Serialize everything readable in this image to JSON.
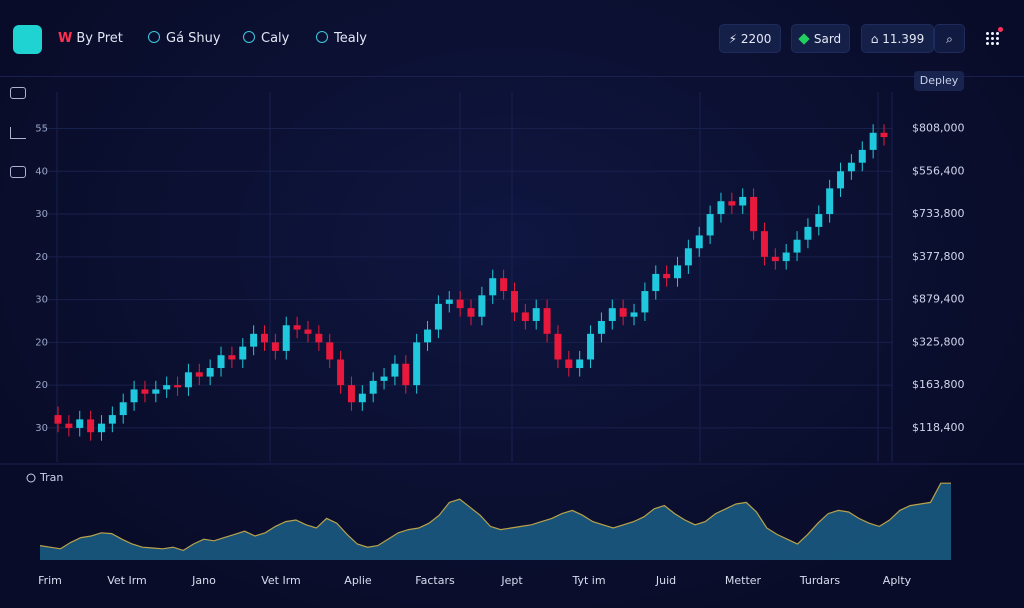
{
  "nav": {
    "brand_letter": "W",
    "tabs": [
      "By Pret",
      "Gá Shuy",
      "Caly",
      "Tealy"
    ]
  },
  "toolbar": {
    "price": "2200",
    "status": "Sard",
    "balance": "11.399"
  },
  "panel": {
    "button": "Depley",
    "volume_label": "Tran"
  },
  "chart_data": {
    "type": "candlestick",
    "left_axis_labels": [
      "55",
      "40",
      "30",
      "20",
      "30",
      "20",
      "20",
      "30"
    ],
    "right_axis_labels": [
      "$808,000",
      "$556,400",
      "$733,800",
      "$377,800",
      "$879,400",
      "$325,800",
      "$163,800",
      "$118,400"
    ],
    "x_labels": [
      "Frim",
      "Vet Irm",
      "Jano",
      "Vet Irm",
      "Aplie",
      "Factars",
      "Jept",
      "Tyt im",
      "Juid",
      "Metter",
      "Turdars",
      "Aplty"
    ],
    "ylim": [
      -0.75,
      7.9
    ],
    "yticks": [
      7,
      6,
      5,
      4,
      3,
      2,
      1,
      0
    ],
    "grid": true,
    "up_color": "#1fc8dc",
    "down_color": "#e8193c",
    "open": [
      0.3,
      0.1,
      0.0,
      0.2,
      -0.1,
      0.1,
      0.3,
      0.6,
      0.9,
      0.8,
      0.9,
      1.0,
      0.95,
      1.3,
      1.2,
      1.4,
      1.7,
      1.6,
      1.9,
      2.2,
      2.0,
      1.8,
      2.4,
      2.3,
      2.2,
      2.0,
      1.6,
      1.0,
      0.6,
      0.8,
      1.1,
      1.2,
      1.5,
      1.0,
      2.0,
      2.3,
      2.9,
      3.0,
      2.8,
      2.6,
      3.1,
      3.5,
      3.2,
      2.7,
      2.5,
      2.8,
      2.2,
      1.6,
      1.4,
      1.6,
      2.2,
      2.5,
      2.8,
      2.6,
      2.7,
      3.2,
      3.6,
      3.5,
      3.8,
      4.2,
      4.5,
      5.0,
      5.3,
      5.2,
      5.4,
      4.6,
      4.0,
      3.9,
      4.1,
      4.4,
      4.7,
      5.0,
      5.6,
      6.0,
      6.2,
      6.5,
      6.9
    ],
    "high": [
      0.5,
      0.3,
      0.4,
      0.4,
      0.3,
      0.5,
      0.8,
      1.1,
      1.1,
      1.1,
      1.2,
      1.2,
      1.5,
      1.5,
      1.6,
      1.9,
      1.9,
      2.1,
      2.4,
      2.4,
      2.2,
      2.6,
      2.6,
      2.5,
      2.4,
      2.2,
      1.8,
      1.2,
      1.0,
      1.3,
      1.4,
      1.7,
      1.7,
      2.2,
      2.5,
      3.1,
      3.2,
      3.2,
      3.0,
      3.3,
      3.7,
      3.7,
      3.4,
      2.9,
      3.0,
      3.0,
      2.4,
      1.8,
      1.8,
      2.4,
      2.7,
      3.0,
      3.0,
      2.9,
      3.4,
      3.8,
      3.8,
      4.0,
      4.4,
      4.7,
      5.2,
      5.5,
      5.5,
      5.6,
      5.6,
      4.8,
      4.2,
      4.3,
      4.6,
      4.9,
      5.2,
      5.8,
      6.2,
      6.4,
      6.7,
      7.1,
      7.1
    ],
    "low": [
      -0.1,
      -0.2,
      -0.2,
      -0.3,
      -0.3,
      -0.1,
      0.1,
      0.4,
      0.6,
      0.6,
      0.7,
      0.75,
      0.75,
      1.0,
      1.0,
      1.2,
      1.4,
      1.4,
      1.7,
      1.8,
      1.6,
      1.6,
      2.1,
      2.0,
      1.8,
      1.4,
      0.8,
      0.4,
      0.4,
      0.6,
      0.9,
      1.0,
      0.8,
      0.8,
      1.8,
      2.1,
      2.7,
      2.6,
      2.4,
      2.4,
      2.9,
      3.0,
      2.5,
      2.3,
      2.3,
      2.0,
      1.4,
      1.2,
      1.2,
      1.4,
      2.0,
      2.3,
      2.4,
      2.4,
      2.5,
      3.0,
      3.3,
      3.3,
      3.6,
      4.0,
      4.3,
      4.8,
      5.0,
      5.0,
      4.4,
      3.8,
      3.7,
      3.7,
      3.9,
      4.2,
      4.5,
      4.8,
      5.4,
      5.8,
      6.0,
      6.3,
      6.6
    ],
    "close": [
      0.1,
      0.0,
      0.2,
      -0.1,
      0.1,
      0.3,
      0.6,
      0.9,
      0.8,
      0.9,
      1.0,
      0.95,
      1.3,
      1.2,
      1.4,
      1.7,
      1.6,
      1.9,
      2.2,
      2.0,
      1.8,
      2.4,
      2.3,
      2.2,
      2.0,
      1.6,
      1.0,
      0.6,
      0.8,
      1.1,
      1.2,
      1.5,
      1.0,
      2.0,
      2.3,
      2.9,
      3.0,
      2.8,
      2.6,
      3.1,
      3.5,
      3.2,
      2.7,
      2.5,
      2.8,
      2.2,
      1.6,
      1.4,
      1.6,
      2.2,
      2.5,
      2.8,
      2.6,
      2.7,
      3.2,
      3.6,
      3.5,
      3.8,
      4.2,
      4.5,
      5.0,
      5.3,
      5.2,
      5.4,
      4.6,
      4.0,
      3.9,
      4.1,
      4.4,
      4.7,
      5.0,
      5.6,
      6.0,
      6.2,
      6.5,
      6.9,
      6.8
    ]
  },
  "volume": {
    "type": "area",
    "ylim": [
      0,
      100
    ],
    "color": "#1a5a82",
    "line_color": "#b8a24a",
    "values": [
      18,
      16,
      14,
      22,
      28,
      30,
      34,
      33,
      26,
      20,
      16,
      15,
      14,
      16,
      12,
      20,
      26,
      24,
      28,
      32,
      36,
      30,
      34,
      42,
      48,
      50,
      44,
      40,
      52,
      46,
      32,
      20,
      16,
      18,
      26,
      34,
      38,
      40,
      46,
      56,
      72,
      76,
      66,
      56,
      42,
      38,
      40,
      42,
      44,
      48,
      52,
      58,
      62,
      56,
      48,
      44,
      40,
      44,
      48,
      54,
      64,
      68,
      58,
      50,
      44,
      48,
      58,
      64,
      70,
      72,
      60,
      40,
      32,
      26,
      20,
      32,
      46,
      58,
      62,
      60,
      52,
      46,
      42,
      50,
      62,
      68,
      70,
      72,
      96,
      96
    ]
  }
}
